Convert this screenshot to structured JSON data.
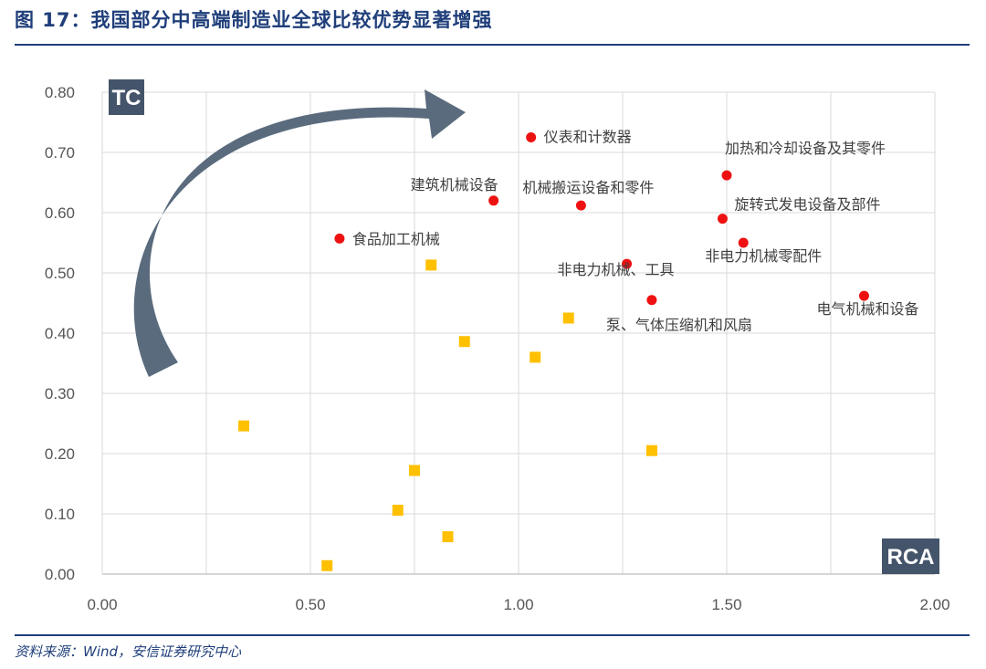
{
  "header": {
    "title": "图 17：我国部分中高端制造业全球比较优势显著增强"
  },
  "footer": {
    "source": "资料来源：Wind，安信证券研究中心"
  },
  "colors": {
    "accent": "#1f3e7a",
    "red_points": "#ee1111",
    "yellow_points": "#ffc000",
    "arrow": "#5a6b7d",
    "label_box": "#44546a"
  },
  "chart_data": {
    "type": "scatter",
    "title": "",
    "xlabel": "RCA",
    "ylabel": "TC",
    "xlim": [
      0,
      2
    ],
    "ylim": [
      0,
      0.8
    ],
    "x_ticks": [
      "0.00",
      "0.50",
      "1.00",
      "1.50",
      "2.00"
    ],
    "y_ticks": [
      "0.00",
      "0.10",
      "0.20",
      "0.30",
      "0.40",
      "0.50",
      "0.60",
      "0.70",
      "0.80"
    ],
    "grid": true,
    "series": [
      {
        "marker": "circle",
        "color": "#ee1111",
        "points": [
          {
            "x": 1.03,
            "y": 0.725,
            "label": "仪表和计数器"
          },
          {
            "x": 1.5,
            "y": 0.662,
            "label": "加热和冷却设备及其零件"
          },
          {
            "x": 0.94,
            "y": 0.62,
            "label": "建筑机械设备"
          },
          {
            "x": 1.15,
            "y": 0.612,
            "label": "机械搬运设备和零件"
          },
          {
            "x": 1.49,
            "y": 0.59,
            "label": "旋转式发电设备及部件"
          },
          {
            "x": 0.57,
            "y": 0.557,
            "label": "食品加工机械"
          },
          {
            "x": 1.54,
            "y": 0.55,
            "label": "非电力机械零配件"
          },
          {
            "x": 1.26,
            "y": 0.515,
            "label": "非电力机械、工具"
          },
          {
            "x": 1.32,
            "y": 0.455,
            "label": "泵、气体压缩机和风扇"
          },
          {
            "x": 1.83,
            "y": 0.462,
            "label": "电气机械和设备"
          }
        ]
      },
      {
        "marker": "square",
        "color": "#ffc000",
        "points": [
          {
            "x": 0.79,
            "y": 0.513
          },
          {
            "x": 1.12,
            "y": 0.425
          },
          {
            "x": 0.87,
            "y": 0.386
          },
          {
            "x": 1.04,
            "y": 0.36
          },
          {
            "x": 0.34,
            "y": 0.246
          },
          {
            "x": 1.32,
            "y": 0.205
          },
          {
            "x": 0.75,
            "y": 0.172
          },
          {
            "x": 0.71,
            "y": 0.106
          },
          {
            "x": 0.83,
            "y": 0.062
          },
          {
            "x": 0.54,
            "y": 0.014
          }
        ]
      }
    ]
  }
}
